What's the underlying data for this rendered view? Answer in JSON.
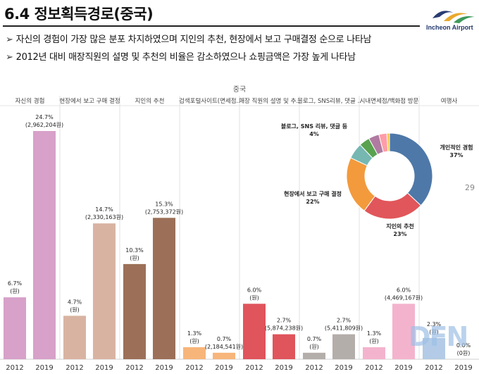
{
  "header": {
    "title": "6.4 정보획득경로(중국)",
    "logo_text": "Incheon Airport",
    "bullets": [
      "자신의 경험이 가장 많은 분포 차지하였으며 지인의 추천, 현장에서 보고 구매결정 순으로 나타남",
      "2012년 대비 매장직원의 설명 및 추천의 비율은 감소하였으나 쇼핑금액은 가장 높게 나타남"
    ],
    "page_number": "29",
    "watermark": "DFN"
  },
  "chart_data": [
    {
      "type": "bar",
      "title": "중국",
      "panels": [
        "자신의 경험",
        "현장에서 보고 구매 결정",
        "지인의 추천",
        "검색포털사이트(면세점..",
        "매장 직원의 설명 및 추..",
        "블로그, SNS리뷰, 댓글 ..",
        "시내면세점/백화점 방문",
        "여행사"
      ],
      "categories": [
        "2012",
        "2019"
      ],
      "values_pct": [
        [
          6.7,
          24.7
        ],
        [
          4.7,
          14.7
        ],
        [
          10.3,
          15.3
        ],
        [
          1.3,
          0.7
        ],
        [
          6.0,
          2.7
        ],
        [
          0.7,
          2.7
        ],
        [
          1.3,
          6.0
        ],
        [
          2.3,
          0.0
        ]
      ],
      "labels": [
        [
          "6.7%",
          "(원)",
          "24.7%",
          "(2,962,204원)"
        ],
        [
          "4.7%",
          "(원)",
          "14.7%",
          "(2,330,163원)"
        ],
        [
          "10.3%",
          "(원)",
          "15.3%",
          "(2,753,372원)"
        ],
        [
          "1.3%",
          "(원)",
          "0.7%",
          "(2,184,541원)"
        ],
        [
          "6.0%",
          "(원)",
          "2.7%",
          "(5,874,238원)"
        ],
        [
          "0.7%",
          "(원)",
          "2.7%",
          "(5,411,809원)"
        ],
        [
          "1.3%",
          "(원)",
          "6.0%",
          "(4,469,167원)"
        ],
        [
          "2.3%",
          "(원)",
          "0.0%",
          "(0원)"
        ]
      ],
      "colors_2012": [
        "#d7a1c9",
        "#d9b3a2",
        "#9c7058",
        "#f7b57a",
        "#e0545c",
        "#b4aeab",
        "#f4b3cd",
        "#b3cbe6"
      ],
      "colors_2019": [
        "#d7a1c9",
        "#d9b3a2",
        "#9c7058",
        "#f7b57a",
        "#e0545c",
        "#b4aeab",
        "#f4b3cd",
        "#b3cbe6"
      ],
      "ylim": [
        0,
        27
      ]
    },
    {
      "type": "pie",
      "slices": [
        {
          "label": "개인적인 경험",
          "value": 37,
          "value_text": "37%",
          "color": "#4e78a8"
        },
        {
          "label": "지인의 추천",
          "value": 23,
          "value_text": "23%",
          "color": "#e1565a"
        },
        {
          "label": "현장에서 보고 구매 결정",
          "value": 22,
          "value_text": "22%",
          "color": "#f39a3c"
        },
        {
          "label": "",
          "value": 6,
          "value_text": "",
          "color": "#76b7b2"
        },
        {
          "label": "",
          "value": 4,
          "value_text": "",
          "color": "#59a24f"
        },
        {
          "label": "블로그, SNS 리뷰, 댓글 등",
          "value": 4,
          "value_text": "4%",
          "color": "#b07aa1"
        },
        {
          "label": "",
          "value": 3,
          "value_text": "",
          "color": "#ff9da7"
        },
        {
          "label": "",
          "value": 1,
          "value_text": "",
          "color": "#edc948"
        }
      ]
    }
  ]
}
